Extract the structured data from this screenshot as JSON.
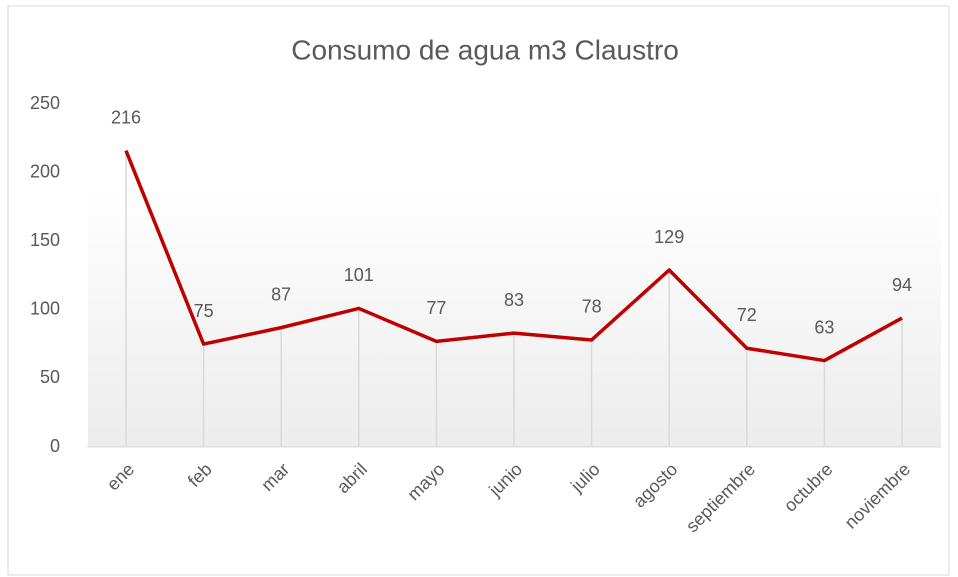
{
  "chart_data": {
    "type": "line",
    "title": "Consumo de agua m3 Claustro",
    "categories": [
      "ene",
      "feb",
      "mar",
      "abril",
      "mayo",
      "junio",
      "julio",
      "agosto",
      "septiembre",
      "octubre",
      "noviembre"
    ],
    "values": [
      216,
      75,
      87,
      101,
      77,
      83,
      78,
      129,
      72,
      63,
      94
    ],
    "color": "#c00000",
    "drop_lines": true,
    "ylim": [
      0,
      250
    ],
    "yticks": [
      0,
      50,
      100,
      150,
      200,
      250
    ]
  }
}
